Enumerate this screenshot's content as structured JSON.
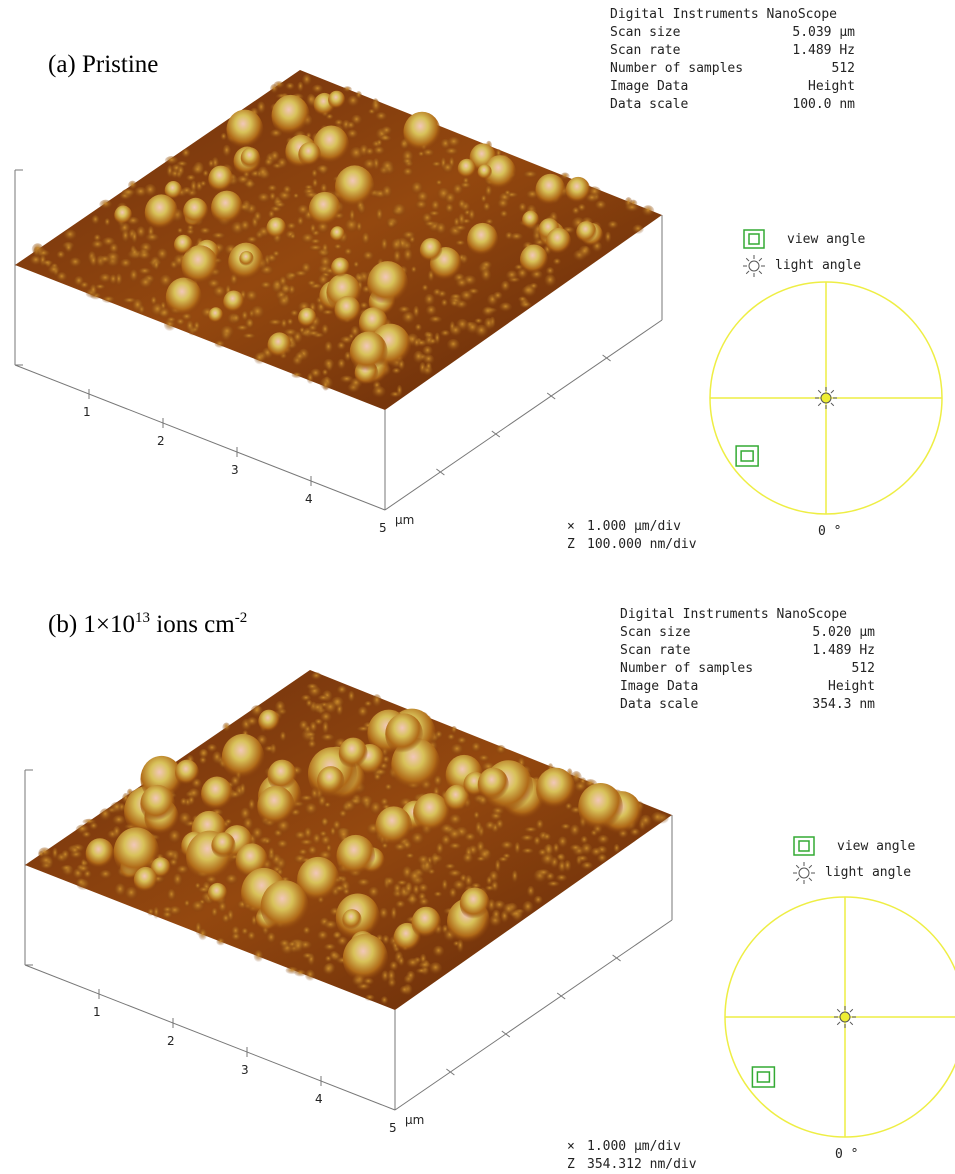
{
  "panels": [
    {
      "label_parts": [
        "(a) Pristine"
      ],
      "info": {
        "header": "Digital Instruments NanoScope",
        "rows": [
          [
            "Scan size",
            "5.039 µm"
          ],
          [
            "Scan rate",
            "1.489 Hz"
          ],
          [
            "Number of samples",
            "512"
          ],
          [
            "Image Data",
            "Height"
          ],
          [
            "Data scale",
            "100.0 nm"
          ]
        ]
      },
      "axis_ticks": [
        "1",
        "2",
        "3",
        "4",
        "5"
      ],
      "axis_unit": "µm",
      "legend": [
        "view angle",
        "light angle"
      ],
      "angle": "0 °",
      "scale": [
        [
          "×",
          "1.000 µm/div"
        ],
        [
          "Z",
          "100.000 nm/div"
        ]
      ]
    },
    {
      "label_parts": [
        "(b) 1×10",
        "13",
        " ions cm",
        "-2"
      ],
      "info": {
        "header": "Digital Instruments NanoScope",
        "rows": [
          [
            "Scan size",
            "5.020 µm"
          ],
          [
            "Scan rate",
            "1.489 Hz"
          ],
          [
            "Number of samples",
            "512"
          ],
          [
            "Image Data",
            "Height"
          ],
          [
            "Data scale",
            "354.3 nm"
          ]
        ]
      },
      "axis_ticks": [
        "1",
        "2",
        "3",
        "4",
        "5"
      ],
      "axis_unit": "µm",
      "legend": [
        "view angle",
        "light angle"
      ],
      "angle": "0 °",
      "scale": [
        [
          "×",
          "1.000 µm/div"
        ],
        [
          "Z",
          "354.312 nm/div"
        ]
      ]
    }
  ]
}
